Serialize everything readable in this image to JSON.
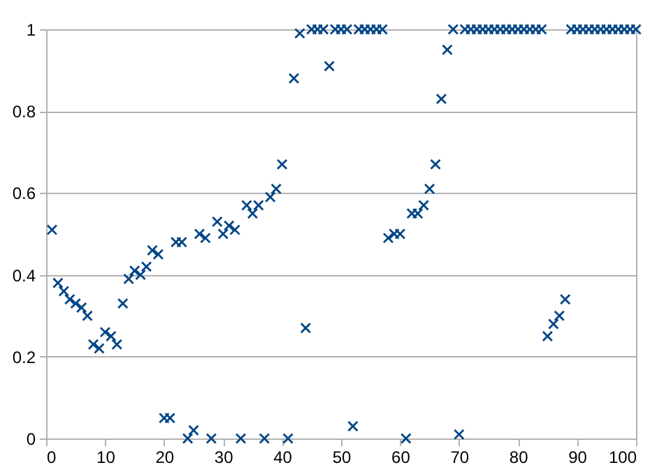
{
  "chart_data": {
    "type": "scatter",
    "marker": "cross",
    "grid": "y",
    "xlim": [
      0,
      100
    ],
    "xticks": [
      0,
      10,
      20,
      30,
      40,
      50,
      60,
      70,
      80,
      90,
      100
    ],
    "ylim": [
      0,
      1
    ],
    "yticks": [
      0,
      0.2,
      0.4,
      0.6,
      0.8,
      1
    ],
    "series": [
      {
        "color": "#004586",
        "x": [
          1,
          2,
          3,
          4,
          5,
          6,
          7,
          8,
          9,
          10,
          11,
          12,
          13,
          14,
          15,
          16,
          17,
          18,
          19,
          20,
          21,
          22,
          23,
          24,
          25,
          26,
          27,
          28,
          29,
          30,
          31,
          32,
          33,
          34,
          35,
          36,
          37,
          38,
          39,
          40,
          41,
          42,
          43,
          44,
          45,
          46,
          47,
          48,
          49,
          50,
          51,
          52,
          53,
          54,
          55,
          56,
          57,
          58,
          59,
          60,
          61,
          62,
          63,
          64,
          65,
          66,
          67,
          68,
          69,
          70,
          71,
          72,
          73,
          74,
          75,
          76,
          77,
          78,
          79,
          80,
          81,
          82,
          83,
          84,
          85,
          86,
          87,
          88,
          89,
          90,
          91,
          92,
          93,
          94,
          95,
          96,
          97,
          98,
          99,
          100
        ],
        "values": [
          0.51,
          0.38,
          0.36,
          0.34,
          0.33,
          0.32,
          0.3,
          0.23,
          0.22,
          0.26,
          0.25,
          0.23,
          0.33,
          0.39,
          0.41,
          0.4,
          0.42,
          0.46,
          0.45,
          0.05,
          0.05,
          0.48,
          0.48,
          0.0,
          0.02,
          0.5,
          0.49,
          0.0,
          0.53,
          0.5,
          0.52,
          0.51,
          0.0,
          0.57,
          0.55,
          0.57,
          0.0,
          0.59,
          0.61,
          0.67,
          0.0,
          0.88,
          0.99,
          0.27,
          1,
          1,
          1,
          0.91,
          1,
          1,
          1,
          0.03,
          1,
          1,
          1,
          1,
          1,
          0.49,
          0.5,
          0.5,
          0.0,
          0.55,
          0.55,
          0.57,
          0.61,
          0.67,
          0.83,
          0.95,
          1,
          0.01,
          1,
          1,
          1,
          1,
          1,
          1,
          1,
          1,
          1,
          1,
          1,
          1,
          1,
          1,
          0.25,
          0.28,
          0.3,
          0.34,
          1,
          1,
          1,
          1,
          1,
          1,
          1,
          1,
          1,
          1,
          1,
          1
        ]
      }
    ]
  }
}
